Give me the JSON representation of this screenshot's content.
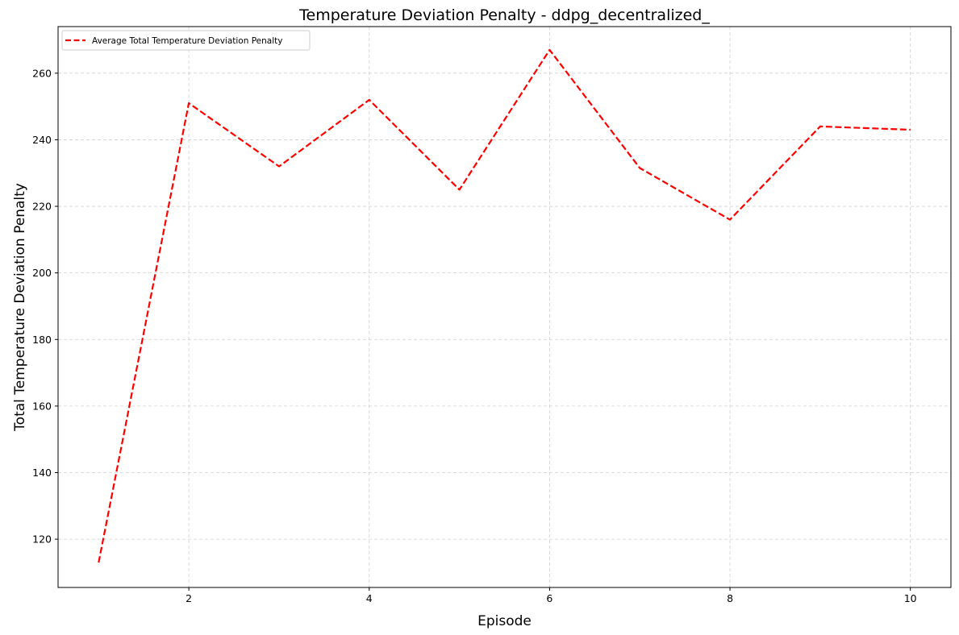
{
  "chart_data": {
    "type": "line",
    "title": "Temperature Deviation Penalty - ddpg_decentralized_",
    "xlabel": "Episode",
    "ylabel": "Total Temperature Deviation Penalty",
    "xlim": [
      0.55,
      10.45
    ],
    "ylim": [
      105.5,
      274
    ],
    "xticks": [
      2,
      4,
      6,
      8,
      10
    ],
    "yticks": [
      120,
      140,
      160,
      180,
      200,
      220,
      240,
      260
    ],
    "grid": true,
    "legend_position": "top-left",
    "series": [
      {
        "name": "Average Total Temperature Deviation Penalty",
        "color": "#ff0000",
        "line_style": "dashed",
        "x": [
          1,
          2,
          3,
          4,
          5,
          6,
          7,
          8,
          9,
          10
        ],
        "y": [
          113,
          251,
          232,
          252,
          225,
          267,
          231.5,
          216,
          244,
          243
        ]
      }
    ]
  }
}
